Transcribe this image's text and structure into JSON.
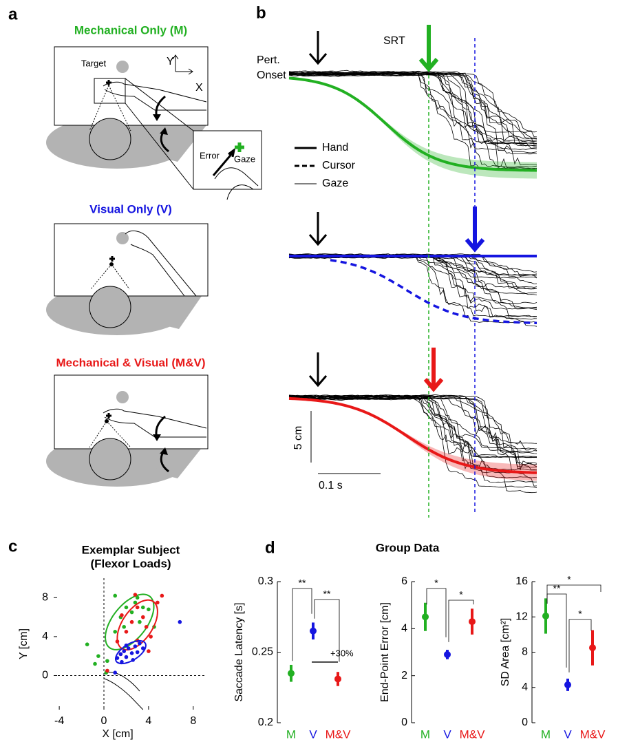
{
  "panel_labels": [
    "a",
    "b",
    "c",
    "d"
  ],
  "panel_a": {
    "titles": [
      "Mechanical Only (M)",
      "Visual Only (V)",
      "Mechanical & Visual (M&V)"
    ],
    "title_colors": [
      "#22b022",
      "#1515e0",
      "#e81818"
    ],
    "target": "Target",
    "y_axis": "Y",
    "x_axis": "X",
    "error": "Error",
    "gaze": "Gaze"
  },
  "panel_b": {
    "pert_onset": [
      "Pert.",
      "Onset"
    ],
    "srt": "SRT",
    "legend": [
      "Hand",
      "Cursor",
      "Gaze"
    ],
    "scale_y": "5 cm",
    "scale_x": "0.1 s"
  },
  "group_title": "Group Data",
  "chart_data": [
    {
      "type": "scatter",
      "title": [
        "Exemplar Subject",
        "(Flexor Loads)"
      ],
      "x_label": "X [cm]",
      "y_label": "Y [cm]",
      "xlim": [
        -4.5,
        9
      ],
      "ylim": [
        -3.5,
        10
      ],
      "xticks": [
        -4,
        0,
        4,
        8
      ],
      "yticks": [
        0,
        4,
        8
      ],
      "series": [
        {
          "name": "M",
          "color": "#22b022",
          "x": [
            -1.5,
            -0.8,
            -0.5,
            0.3,
            1,
            1.5,
            1.8,
            2,
            2.5,
            3,
            3.2,
            3.5,
            4,
            4.5,
            1,
            0.2,
            2.8
          ],
          "y": [
            3.2,
            1.2,
            2,
            1.5,
            4.5,
            6,
            5,
            7,
            6.5,
            8,
            5.5,
            7,
            6.8,
            5,
            8.2,
            0.3,
            7.5
          ],
          "ellipse": {
            "cx": 2.3,
            "cy": 5.5,
            "rx": 3.2,
            "ry": 1.6,
            "angle": 58
          }
        },
        {
          "name": "M&V",
          "color": "#e81818",
          "x": [
            0.3,
            1.2,
            2,
            2.5,
            3,
            3.5,
            3.8,
            4.2,
            4.8,
            5.2,
            2.8,
            1.6,
            3,
            4,
            1.5
          ],
          "y": [
            0.5,
            3.5,
            4.5,
            5.5,
            3.6,
            6,
            5,
            4,
            7.5,
            8.2,
            8.3,
            6.2,
            7,
            2.5,
            2.2
          ],
          "ellipse": {
            "cx": 3,
            "cy": 5.2,
            "rx": 2.8,
            "ry": 1.4,
            "angle": 62
          }
        },
        {
          "name": "V",
          "color": "#1515e0",
          "x": [
            1,
            1.2,
            1.5,
            1.8,
            2,
            2.2,
            2.5,
            2.8,
            3,
            3.2,
            3.5,
            2,
            1.6,
            6.8,
            2.6
          ],
          "y": [
            0.3,
            1.8,
            2.2,
            2.5,
            1.9,
            2.8,
            2.3,
            3,
            2.4,
            3.3,
            2.8,
            3.1,
            1.4,
            5.5,
            1.6
          ],
          "ellipse": {
            "cx": 2.4,
            "cy": 2.4,
            "rx": 1.6,
            "ry": 0.8,
            "angle": 38
          }
        }
      ]
    },
    {
      "type": "errorbar",
      "y_label": "Saccade Latency [s]",
      "categories": [
        "M",
        "V",
        "M&V"
      ],
      "colors": [
        "#22b022",
        "#1515e0",
        "#e81818"
      ],
      "values": [
        0.235,
        0.265,
        0.231
      ],
      "errors": [
        0.006,
        0.006,
        0.005
      ],
      "ylim": [
        0.2,
        0.3
      ],
      "yticks": [
        0.2,
        0.25,
        0.3
      ],
      "annotations": [
        "**",
        "**",
        "+30%"
      ]
    },
    {
      "type": "errorbar",
      "y_label": "End-Point Error [cm]",
      "categories": [
        "M",
        "V",
        "M&V"
      ],
      "colors": [
        "#22b022",
        "#1515e0",
        "#e81818"
      ],
      "values": [
        4.5,
        2.9,
        4.3
      ],
      "errors": [
        0.6,
        0.2,
        0.55
      ],
      "ylim": [
        0,
        6
      ],
      "yticks": [
        0,
        2,
        4,
        6
      ],
      "annotations": [
        "*",
        "*"
      ]
    },
    {
      "type": "errorbar",
      "y_label": "SD Area [cm²]",
      "categories": [
        "M",
        "V",
        "M&V"
      ],
      "colors": [
        "#22b022",
        "#1515e0",
        "#e81818"
      ],
      "values": [
        12.1,
        4.3,
        8.5
      ],
      "errors": [
        2,
        0.7,
        2
      ],
      "ylim": [
        0,
        16
      ],
      "yticks": [
        0,
        4,
        8,
        12,
        16
      ],
      "annotations": [
        "*",
        "**",
        "*"
      ]
    }
  ]
}
